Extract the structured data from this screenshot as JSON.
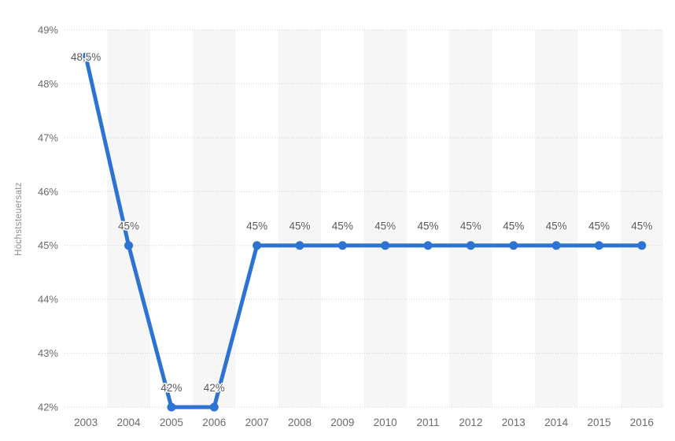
{
  "chart_data": {
    "type": "line",
    "title": "",
    "xlabel": "",
    "ylabel": "Höchststeuersatz",
    "categories": [
      "2003",
      "2004",
      "2005",
      "2006",
      "2007",
      "2008",
      "2009",
      "2010",
      "2011",
      "2012",
      "2013",
      "2014",
      "2015",
      "2016"
    ],
    "series": [
      {
        "name": "Höchststeuersatz",
        "values": [
          48.5,
          45,
          42,
          42,
          45,
          45,
          45,
          45,
          45,
          45,
          45,
          45,
          45,
          45
        ],
        "point_labels": [
          "48,5%",
          "45%",
          "42%",
          "42%",
          "45%",
          "45%",
          "45%",
          "45%",
          "45%",
          "45%",
          "45%",
          "45%",
          "45%",
          "45%"
        ]
      }
    ],
    "ylim": [
      42,
      49
    ],
    "yticks": [
      42,
      43,
      44,
      45,
      46,
      47,
      48,
      49
    ],
    "ytick_suffix": "%",
    "grid": "horizontal dotted gridlines",
    "legend": "none",
    "plot_bands": "alternating vertical column bands on even years"
  },
  "colors": {
    "line": "#2c73d3",
    "marker": "#2c73d3",
    "band": "#f6f6f6",
    "grid": "#cfcfcf",
    "tick_text": "#6b6b6b",
    "data_label_text": "#58585a",
    "axis_title_text": "#8e8e8e",
    "background": "#ffffff"
  }
}
